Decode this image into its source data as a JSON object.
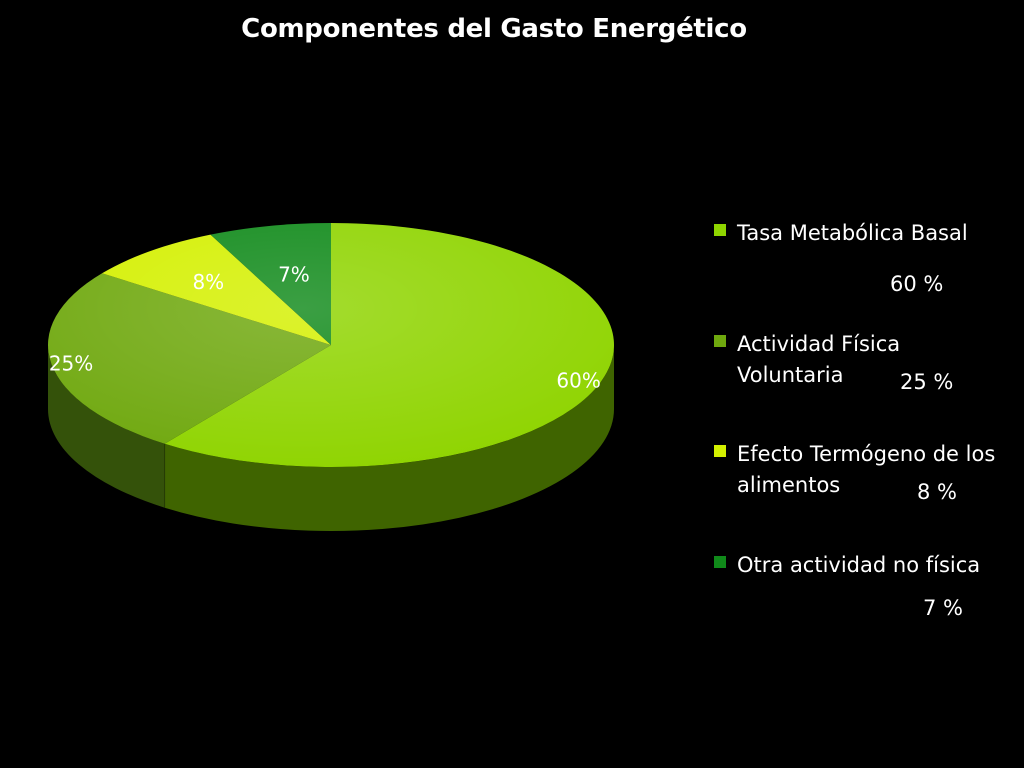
{
  "chart_data": {
    "type": "pie",
    "title": "Componentes del Gasto Energético",
    "slices": [
      {
        "name": "Tasa Metabólica Basal",
        "value": 60,
        "label": "60%",
        "legend_value": "60 %",
        "color": "#8fd400",
        "dark": "#3f6400"
      },
      {
        "name": "Actividad Física Voluntaria",
        "value": 25,
        "label": "25%",
        "legend_value": "25 %",
        "color": "#6fa80e",
        "dark": "#34520a"
      },
      {
        "name": "Efecto Termógeno de los alimentos",
        "value": 8,
        "label": "8%",
        "legend_value": "8 %",
        "color": "#d4f000",
        "dark": "#6a7a00"
      },
      {
        "name": "Otra actividad no física",
        "value": 7,
        "label": "7%",
        "legend_value": "7 %",
        "color": "#108a1a",
        "dark": "#064a0a"
      }
    ],
    "legend_placement": "right"
  }
}
